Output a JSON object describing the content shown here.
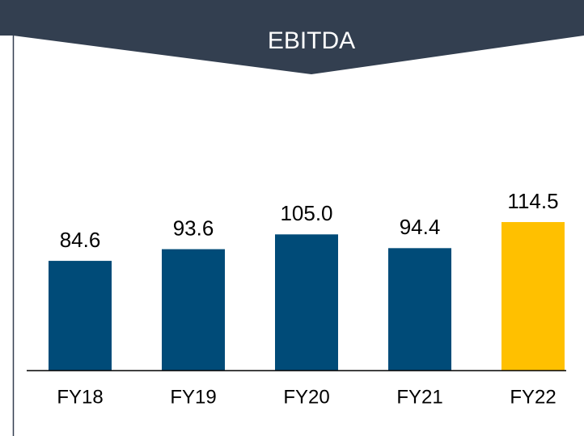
{
  "chart_data": {
    "type": "bar",
    "title": "EBITDA",
    "categories": [
      "FY18",
      "FY19",
      "FY20",
      "FY21",
      "FY22"
    ],
    "values": [
      84.6,
      93.6,
      105.0,
      94.4,
      114.5
    ],
    "value_labels": [
      "84.6",
      "93.6",
      "105.0",
      "94.4",
      "114.5"
    ],
    "colors": [
      "#004b78",
      "#004b78",
      "#004b78",
      "#004b78",
      "#ffc000"
    ],
    "ylim": [
      0,
      150
    ]
  }
}
